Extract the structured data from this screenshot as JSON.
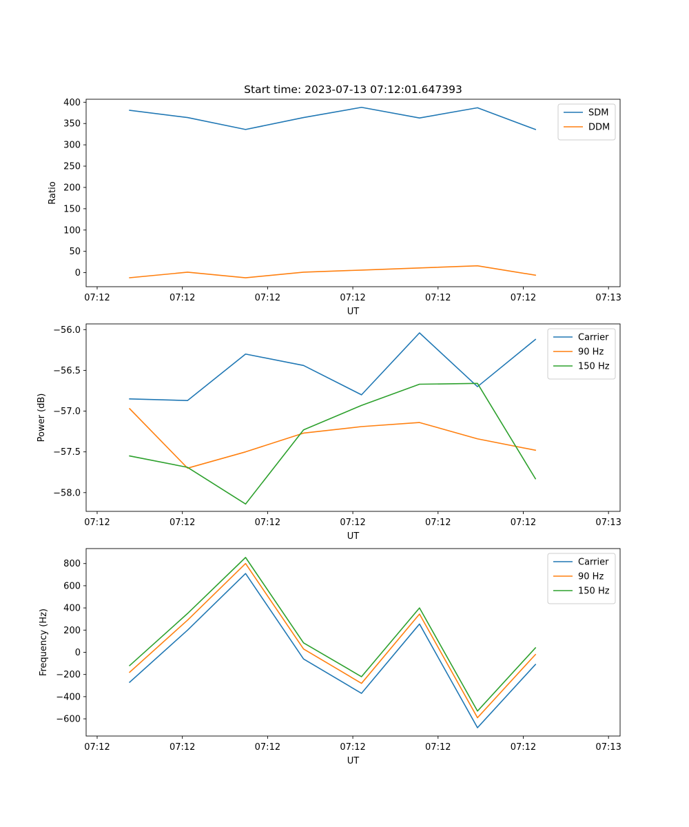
{
  "title": "Start time: 2023-07-13 07:12:01.647393",
  "colors": {
    "blue": "#1f77b4",
    "orange": "#ff7f0e",
    "green": "#2ca02c"
  },
  "x_tick_labels": [
    "07:12",
    "07:12",
    "07:12",
    "07:12",
    "07:12",
    "07:12",
    "07:13"
  ],
  "chart_data": [
    {
      "type": "line",
      "title": "Start time: 2023-07-13 07:12:01.647393",
      "xlabel": "UT",
      "ylabel": "Ratio",
      "x": [
        1,
        2,
        3,
        4,
        5,
        6,
        7,
        8
      ],
      "xlim": [
        0.25,
        9.46
      ],
      "ylim": [
        -33,
        407
      ],
      "yticks": [
        0,
        50,
        100,
        150,
        200,
        250,
        300,
        350,
        400
      ],
      "ytick_labels": [
        "0",
        "50",
        "100",
        "150",
        "200",
        "250",
        "300",
        "350",
        "400"
      ],
      "legend_position": "upper right",
      "series": [
        {
          "name": "SDM",
          "color": "#1f77b4",
          "values": [
            381,
            364,
            336,
            364,
            388,
            363,
            387,
            336
          ]
        },
        {
          "name": "DDM",
          "color": "#ff7f0e",
          "values": [
            -12,
            1,
            -12,
            1,
            6,
            11,
            16,
            -6
          ]
        }
      ]
    },
    {
      "type": "line",
      "xlabel": "UT",
      "ylabel": "Power (dB)",
      "x": [
        1,
        2,
        3,
        4,
        5,
        6,
        7,
        8
      ],
      "xlim": [
        0.25,
        9.46
      ],
      "ylim": [
        -58.23,
        -55.93
      ],
      "yticks": [
        -58.0,
        -57.5,
        -57.0,
        -56.5,
        -56.0
      ],
      "ytick_labels": [
        "−58.0",
        "−57.5",
        "−57.0",
        "−56.5",
        "−56.0"
      ],
      "legend_position": "upper right",
      "series": [
        {
          "name": "Carrier",
          "color": "#1f77b4",
          "values": [
            -56.85,
            -56.87,
            -56.3,
            -56.44,
            -56.8,
            -56.04,
            -56.7,
            -56.12
          ]
        },
        {
          "name": "90 Hz",
          "color": "#ff7f0e",
          "values": [
            -56.97,
            -57.7,
            -57.5,
            -57.27,
            -57.19,
            -57.14,
            -57.34,
            -57.48
          ]
        },
        {
          "name": "150 Hz",
          "color": "#2ca02c",
          "values": [
            -57.55,
            -57.69,
            -58.14,
            -57.23,
            -56.93,
            -56.67,
            -56.66,
            -57.83
          ]
        }
      ]
    },
    {
      "type": "line",
      "xlabel": "UT",
      "ylabel": "Frequency (Hz)",
      "x": [
        1,
        2,
        3,
        4,
        5,
        6,
        7,
        8
      ],
      "xlim": [
        0.25,
        9.46
      ],
      "ylim": [
        -755,
        935
      ],
      "yticks": [
        -600,
        -400,
        -200,
        0,
        200,
        400,
        600,
        800
      ],
      "ytick_labels": [
        "−600",
        "−400",
        "−200",
        "0",
        "200",
        "400",
        "600",
        "800"
      ],
      "legend_position": "upper right",
      "series": [
        {
          "name": "Carrier",
          "color": "#1f77b4",
          "values": [
            -270,
            200,
            710,
            -60,
            -370,
            255,
            -680,
            -110
          ]
        },
        {
          "name": "90 Hz",
          "color": "#ff7f0e",
          "values": [
            -180,
            290,
            800,
            30,
            -280,
            345,
            -590,
            -20
          ]
        },
        {
          "name": "150 Hz",
          "color": "#2ca02c",
          "values": [
            -120,
            350,
            855,
            85,
            -220,
            400,
            -530,
            40
          ]
        }
      ]
    }
  ]
}
